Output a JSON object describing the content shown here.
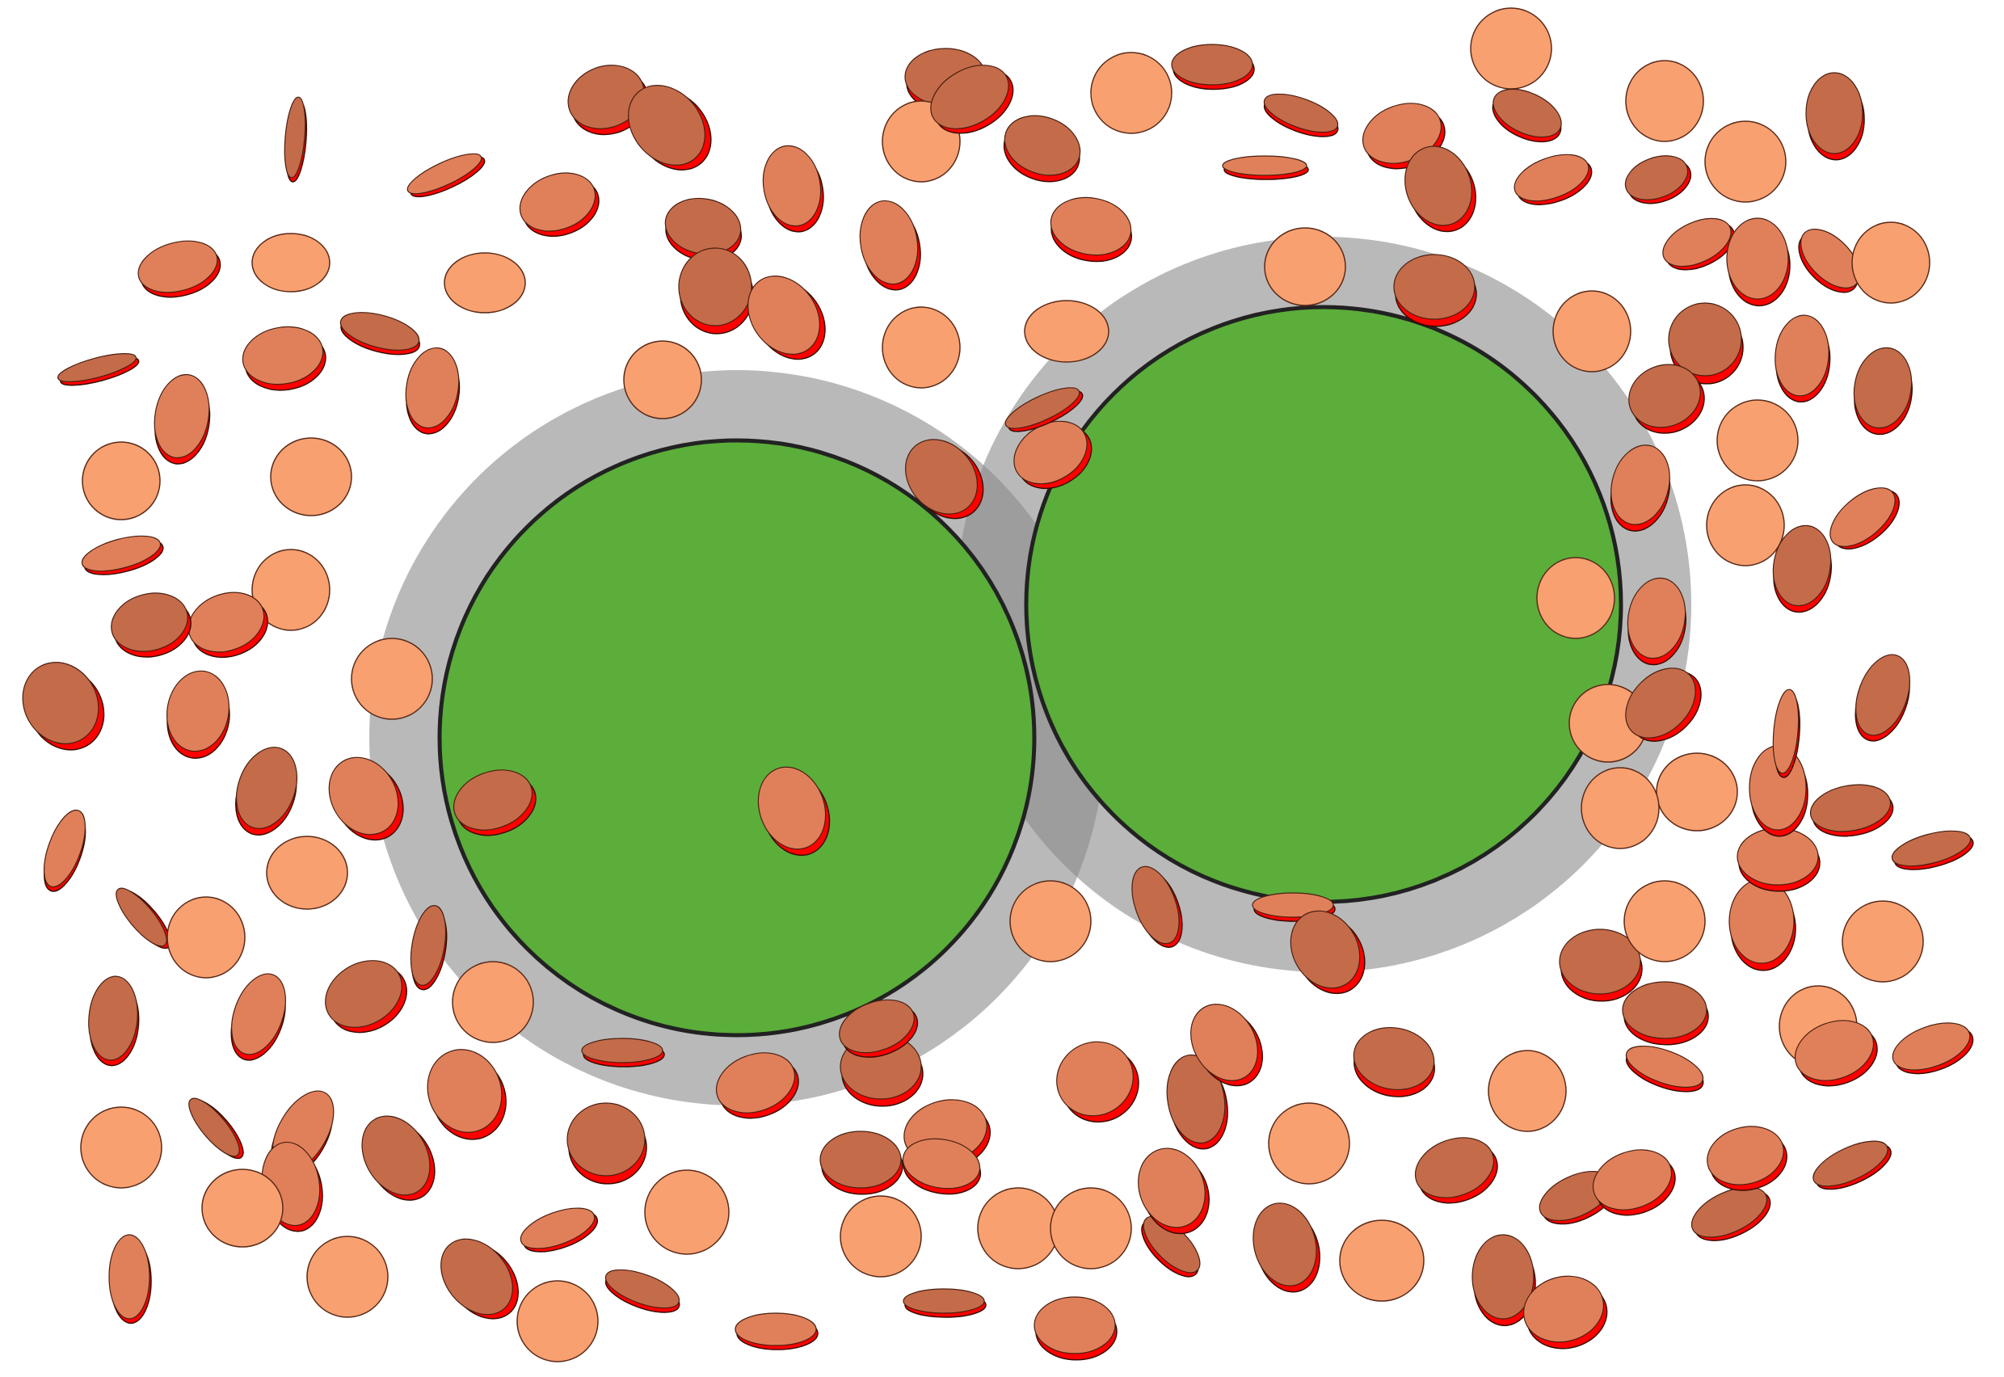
{
  "colors": {
    "background": "#ffffff",
    "particle_face": "#c46b4a",
    "particle_face_light": "#e0805a",
    "particle_face_flat": "#f9a070",
    "particle_edge": "#ff0000",
    "particle_shadow": "#7a3a22",
    "core_fill": "#5bae3a",
    "core_stroke": "#222222",
    "shell_fill": "#8a8a8a",
    "shell_overlap": "#6e6e6e"
  },
  "particles": {
    "flat_count_hint": "many",
    "description_kind": "disc-shaped particles"
  },
  "cores": {
    "count": 2
  }
}
